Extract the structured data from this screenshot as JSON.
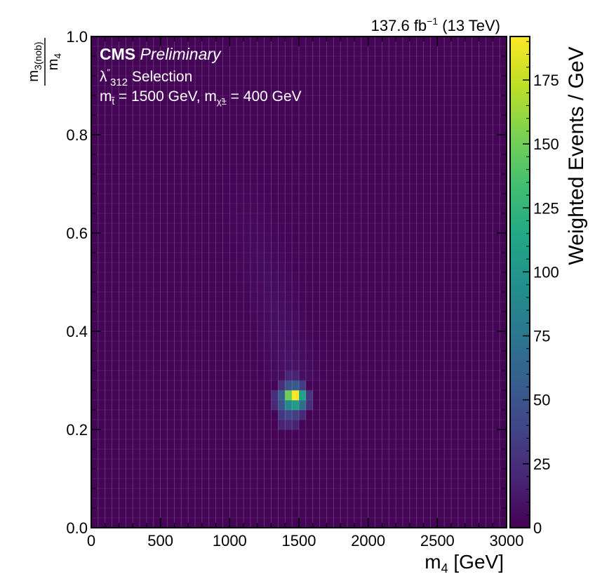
{
  "chart_data": {
    "type": "heatmap",
    "lumi_label": "137.6 fb",
    "lumi_sup": "−1",
    "lumi_suffix": " (13 TeV)",
    "cms_label": "CMS",
    "prelim_label": "Preliminary",
    "selection_lambda": "λ",
    "selection_prime": "′′",
    "selection_sub": "312",
    "selection_rest": " Selection",
    "mass_line": {
      "m1": "m",
      "m1_sub": "t̃",
      "m1_val": " = 1500 GeV, ",
      "m2": "m",
      "m2_sub": "χ̃±",
      "m2_val": " = 400 GeV"
    },
    "xlabel_main": "m",
    "xlabel_sub": "4",
    "xlabel_unit": " [GeV]",
    "ylabel_num_main": "m",
    "ylabel_num_sub": "3(nob)",
    "ylabel_den_main": "m",
    "ylabel_den_sub": "4",
    "zlabel": "Weighted Events / GeV",
    "xlim": [
      0,
      3000
    ],
    "ylim": [
      0,
      1.0
    ],
    "zlim": [
      0,
      192
    ],
    "x_ticks": [
      0,
      500,
      1000,
      1500,
      2000,
      2500,
      3000
    ],
    "x_tick_labels": [
      "0",
      "500",
      "1000",
      "1500",
      "2000",
      "2500",
      "3000"
    ],
    "y_ticks": [
      0,
      0.2,
      0.4,
      0.6,
      0.8,
      1.0
    ],
    "y_tick_labels": [
      "0.0",
      "0.2",
      "0.4",
      "0.6",
      "0.8",
      "1.0"
    ],
    "z_ticks": [
      0,
      25,
      50,
      75,
      100,
      125,
      150,
      175
    ],
    "z_tick_labels": [
      "0",
      "25",
      "50",
      "75",
      "100",
      "125",
      "150",
      "175"
    ],
    "colormap": "viridis",
    "bin_width_x": 50,
    "bin_width_y": 0.02,
    "baseline_value": 2,
    "peak_bins": [
      {
        "x": 1475,
        "y": 0.27,
        "value": 192
      },
      {
        "x": 1425,
        "y": 0.27,
        "value": 150
      },
      {
        "x": 1525,
        "y": 0.27,
        "value": 110
      },
      {
        "x": 1475,
        "y": 0.25,
        "value": 105
      },
      {
        "x": 1425,
        "y": 0.25,
        "value": 90
      },
      {
        "x": 1525,
        "y": 0.25,
        "value": 70
      },
      {
        "x": 1375,
        "y": 0.27,
        "value": 60
      },
      {
        "x": 1375,
        "y": 0.25,
        "value": 50
      },
      {
        "x": 1475,
        "y": 0.29,
        "value": 55
      },
      {
        "x": 1425,
        "y": 0.29,
        "value": 48
      },
      {
        "x": 1525,
        "y": 0.29,
        "value": 35
      },
      {
        "x": 1425,
        "y": 0.23,
        "value": 40
      },
      {
        "x": 1475,
        "y": 0.23,
        "value": 35
      },
      {
        "x": 1375,
        "y": 0.23,
        "value": 30
      },
      {
        "x": 1575,
        "y": 0.27,
        "value": 30
      },
      {
        "x": 1575,
        "y": 0.25,
        "value": 25
      },
      {
        "x": 1325,
        "y": 0.27,
        "value": 25
      },
      {
        "x": 1325,
        "y": 0.25,
        "value": 22
      },
      {
        "x": 1375,
        "y": 0.29,
        "value": 25
      },
      {
        "x": 1425,
        "y": 0.21,
        "value": 22
      },
      {
        "x": 1475,
        "y": 0.21,
        "value": 18
      },
      {
        "x": 1375,
        "y": 0.21,
        "value": 18
      },
      {
        "x": 1525,
        "y": 0.23,
        "value": 22
      },
      {
        "x": 1425,
        "y": 0.31,
        "value": 20
      },
      {
        "x": 1475,
        "y": 0.31,
        "value": 18
      }
    ]
  }
}
